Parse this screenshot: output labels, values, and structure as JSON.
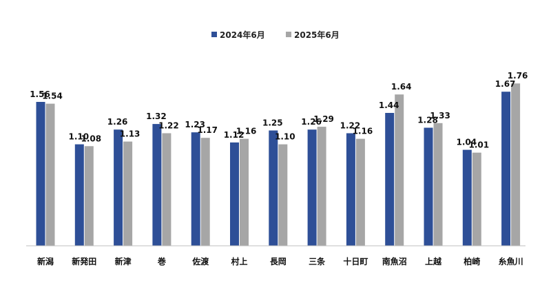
{
  "chart_data": {
    "type": "bar",
    "title": "",
    "xlabel": "",
    "ylabel": "",
    "ylim": [
      0,
      2.0
    ],
    "grid": false,
    "legend_placement": "top-center",
    "categories": [
      "新潟",
      "新発田",
      "新津",
      "巻",
      "佐渡",
      "村上",
      "長岡",
      "三条",
      "十日町",
      "南魚沼",
      "上越",
      "柏崎",
      "糸魚川"
    ],
    "series": [
      {
        "name": "2024年6月",
        "color": "#2e4f97",
        "values": [
          1.56,
          1.1,
          1.26,
          1.32,
          1.23,
          1.12,
          1.25,
          1.26,
          1.22,
          1.44,
          1.28,
          1.04,
          1.67
        ],
        "labels": [
          "1.56",
          "1.10",
          "1.26",
          "1.32",
          "1.23",
          "1.12",
          "1.25",
          "1.26",
          "1.22",
          "1.44",
          "1.28",
          "1.04",
          "1.67"
        ]
      },
      {
        "name": "2025年6月",
        "color": "#a6a6a6",
        "values": [
          1.54,
          1.08,
          1.13,
          1.22,
          1.17,
          1.16,
          1.1,
          1.29,
          1.16,
          1.64,
          1.33,
          1.01,
          1.76
        ],
        "labels": [
          "1.54",
          "1.08",
          "1.13",
          "1.22",
          "1.17",
          "1.16",
          "1.10",
          "1.29",
          "1.16",
          "1.64",
          "1.33",
          "1.01",
          "1.76"
        ]
      }
    ]
  }
}
